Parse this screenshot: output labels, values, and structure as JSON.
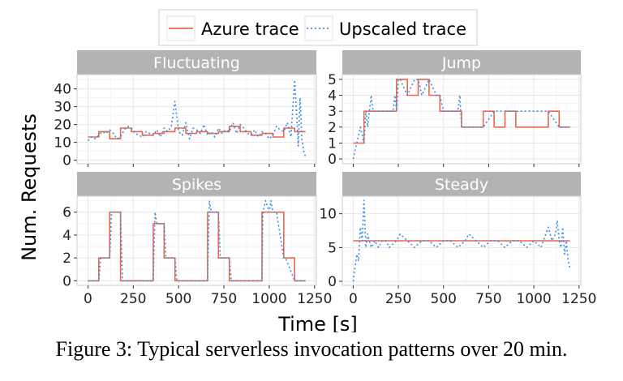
{
  "caption": "Figure 3: Typical serverless invocation patterns over 20 min.",
  "colors": {
    "azure": "#e8674a",
    "upscaled": "#3b8fe6",
    "strip": "#b3b3b3",
    "grid": "#e6e6e6"
  },
  "chart_data": {
    "type": "line",
    "xlabel": "Time [s]",
    "ylabel": "Num. Requests",
    "legend": {
      "position": "top-center",
      "entries": [
        {
          "name": "Azure trace",
          "style": "solid"
        },
        {
          "name": "Upscaled trace",
          "style": "dotted"
        }
      ]
    },
    "panels": [
      {
        "title": "Fluctuating",
        "xlim": [
          -60,
          1260
        ],
        "ylim": [
          -2,
          48
        ],
        "xticks": [
          0,
          250,
          500,
          750,
          1000,
          1250
        ],
        "yticks": [
          0,
          10,
          20,
          30,
          40
        ],
        "series": [
          {
            "name": "Azure trace",
            "x": [
              0,
              60,
              60,
              120,
              120,
              180,
              180,
              240,
              240,
              300,
              300,
              360,
              360,
              420,
              420,
              480,
              480,
              540,
              540,
              600,
              600,
              660,
              660,
              720,
              720,
              780,
              780,
              840,
              840,
              900,
              900,
              960,
              960,
              1020,
              1020,
              1080,
              1080,
              1140,
              1140,
              1200
            ],
            "y": [
              13,
              13,
              16,
              16,
              12,
              12,
              18,
              18,
              16,
              16,
              14,
              14,
              15,
              15,
              16,
              16,
              18,
              18,
              15,
              15,
              16,
              16,
              15,
              15,
              16,
              16,
              19,
              19,
              16,
              16,
              14,
              14,
              15,
              15,
              13,
              13,
              18,
              18,
              16,
              16
            ]
          },
          {
            "name": "Upscaled trace",
            "x": [
              0,
              20,
              40,
              60,
              80,
              100,
              120,
              140,
              160,
              180,
              200,
              220,
              240,
              260,
              280,
              300,
              320,
              340,
              360,
              380,
              400,
              420,
              440,
              460,
              480,
              500,
              520,
              540,
              560,
              580,
              600,
              620,
              640,
              660,
              680,
              700,
              720,
              740,
              760,
              780,
              800,
              820,
              840,
              860,
              880,
              900,
              920,
              940,
              960,
              980,
              1000,
              1020,
              1040,
              1060,
              1080,
              1100,
              1120,
              1140,
              1150,
              1160,
              1170,
              1180,
              1190,
              1200
            ],
            "y": [
              11,
              13,
              12,
              14,
              16,
              15,
              17,
              15,
              12,
              13,
              17,
              19,
              18,
              15,
              14,
              13,
              16,
              15,
              14,
              17,
              13,
              18,
              16,
              19,
              33,
              16,
              14,
              21,
              12,
              18,
              17,
              15,
              20,
              14,
              16,
              13,
              18,
              15,
              17,
              16,
              21,
              15,
              20,
              18,
              15,
              14,
              17,
              13,
              16,
              15,
              12,
              14,
              19,
              17,
              16,
              21,
              13,
              45,
              28,
              8,
              35,
              12,
              5,
              2
            ]
          }
        ]
      },
      {
        "title": "Jump",
        "xlim": [
          -60,
          1260
        ],
        "ylim": [
          -0.3,
          5.3
        ],
        "xticks": [
          0,
          250,
          500,
          750,
          1000,
          1250
        ],
        "yticks": [
          0,
          1,
          2,
          3,
          4,
          5
        ],
        "series": [
          {
            "name": "Azure trace",
            "x": [
              0,
              60,
              60,
              120,
              120,
              240,
              240,
              300,
              300,
              360,
              360,
              420,
              420,
              480,
              480,
              600,
              600,
              720,
              720,
              780,
              780,
              840,
              840,
              900,
              900,
              1080,
              1080,
              1140,
              1140,
              1200
            ],
            "y": [
              1,
              1,
              3,
              3,
              3,
              3,
              5,
              5,
              4,
              4,
              5,
              5,
              4,
              4,
              3,
              3,
              2,
              2,
              3,
              3,
              2,
              2,
              3,
              3,
              2,
              2,
              3,
              3,
              2,
              2
            ]
          },
          {
            "name": "Upscaled trace",
            "x": [
              0,
              20,
              40,
              60,
              70,
              80,
              100,
              110,
              120,
              180,
              220,
              230,
              240,
              250,
              260,
              300,
              340,
              360,
              380,
              420,
              460,
              480,
              500,
              580,
              590,
              600,
              720,
              780,
              900,
              1080,
              1140,
              1200
            ],
            "y": [
              0,
              1,
              2,
              1,
              3,
              2,
              4,
              3,
              3,
              3,
              3,
              4,
              3,
              5,
              5,
              4,
              5,
              5,
              4,
              5,
              4,
              4,
              3,
              3,
              4,
              2,
              2,
              3,
              3,
              3,
              2,
              2
            ]
          }
        ]
      },
      {
        "title": "Spikes",
        "xlim": [
          -60,
          1260
        ],
        "ylim": [
          -0.4,
          7.4
        ],
        "xticks": [
          0,
          250,
          500,
          750,
          1000,
          1250
        ],
        "yticks": [
          0,
          2,
          4,
          6
        ],
        "series": [
          {
            "name": "Azure trace",
            "x": [
              0,
              60,
              60,
              120,
              120,
              180,
              180,
              360,
              360,
              420,
              420,
              480,
              480,
              660,
              660,
              720,
              720,
              780,
              780,
              960,
              960,
              1020,
              1020,
              1080,
              1080,
              1140,
              1140,
              1200
            ],
            "y": [
              0,
              0,
              2,
              2,
              6,
              6,
              0,
              0,
              5,
              5,
              2,
              2,
              0,
              0,
              6,
              6,
              2,
              2,
              0,
              0,
              6,
              6,
              6,
              6,
              2,
              2,
              0,
              0
            ]
          },
          {
            "name": "Upscaled trace",
            "x": [
              0,
              60,
              70,
              120,
              130,
              180,
              190,
              360,
              370,
              380,
              420,
              430,
              480,
              490,
              660,
              670,
              680,
              720,
              730,
              780,
              790,
              960,
              965,
              980,
              1000,
              1010,
              1020,
              1040,
              1080,
              1090,
              1140,
              1150,
              1200
            ],
            "y": [
              0,
              0,
              2,
              2,
              6,
              6,
              0,
              0,
              6,
              5,
              5,
              2,
              2,
              0,
              0,
              7,
              6,
              6,
              2,
              2,
              0,
              0,
              6,
              7,
              6,
              7,
              6,
              6,
              2,
              2,
              0,
              0,
              0
            ]
          }
        ]
      },
      {
        "title": "Steady",
        "xlim": [
          -60,
          1260
        ],
        "ylim": [
          -0.6,
          12.6
        ],
        "xticks": [
          0,
          250,
          500,
          750,
          1000,
          1250
        ],
        "yticks": [
          0,
          5,
          10
        ],
        "series": [
          {
            "name": "Azure trace",
            "x": [
              0,
              1200
            ],
            "y": [
              6,
              6
            ]
          },
          {
            "name": "Upscaled trace",
            "x": [
              0,
              10,
              20,
              30,
              40,
              50,
              60,
              70,
              80,
              90,
              100,
              120,
              140,
              160,
              180,
              200,
              240,
              260,
              300,
              340,
              380,
              420,
              460,
              500,
              540,
              580,
              620,
              640,
              680,
              720,
              760,
              800,
              840,
              880,
              920,
              960,
              1000,
              1040,
              1080,
              1100,
              1120,
              1130,
              1140,
              1150,
              1160,
              1170,
              1180,
              1190,
              1200
            ],
            "y": [
              0,
              2,
              4,
              3,
              8,
              6,
              12,
              5,
              7,
              6,
              5,
              6,
              5,
              6,
              6,
              5,
              6,
              7,
              6,
              5,
              6,
              6,
              5,
              6,
              6,
              5,
              6,
              7,
              6,
              5,
              6,
              6,
              5,
              6,
              6,
              5,
              6,
              5,
              8,
              6,
              7,
              9,
              6,
              5,
              8,
              4,
              6,
              3,
              2
            ]
          }
        ]
      }
    ]
  }
}
